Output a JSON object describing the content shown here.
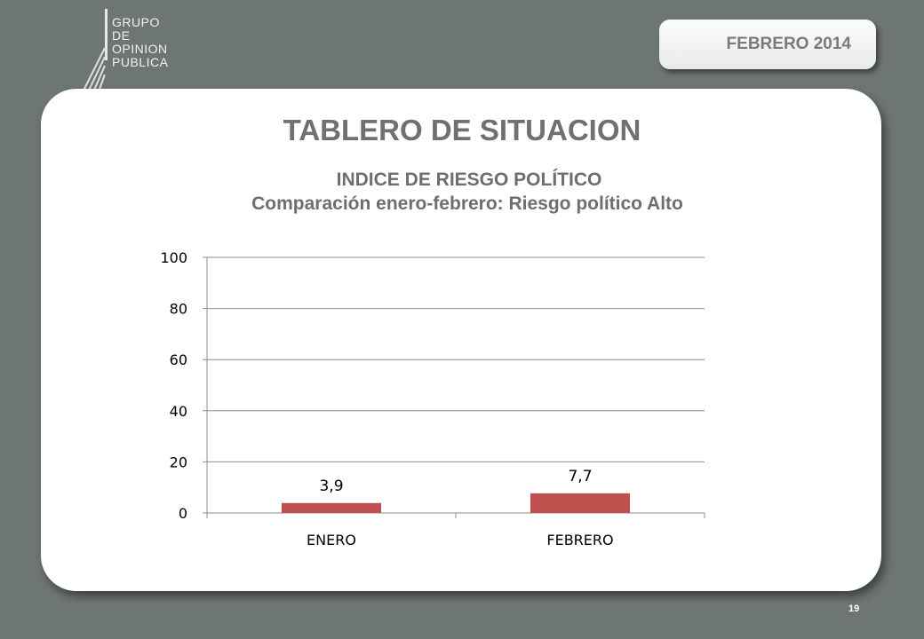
{
  "logo": {
    "lines": [
      "GRUPO",
      "DE",
      "OPINION",
      "PUBLICA"
    ]
  },
  "date_badge": "FEBRERO 2014",
  "page_title": "TABLERO DE SITUACION",
  "chart_title_line1": "INDICE DE RIESGO POLÍTICO",
  "chart_title_line2": "Comparación enero-febrero: Riesgo político Alto",
  "page_number": "19",
  "colors": {
    "bar": "#c0504d",
    "background": "#6e7575",
    "card": "#ffffff"
  },
  "chart_data": {
    "type": "bar",
    "title": "INDICE DE RIESGO POLÍTICO",
    "subtitle": "Comparación enero-febrero: Riesgo político Alto",
    "categories": [
      "ENERO",
      "FEBRERO"
    ],
    "values": [
      3.9,
      7.7
    ],
    "data_labels": [
      "3,9",
      "7,7"
    ],
    "ylim": [
      0,
      100
    ],
    "yticks": [
      0,
      20,
      40,
      60,
      80,
      100
    ],
    "xlabel": "",
    "ylabel": "",
    "grid": true,
    "legend": "none"
  }
}
